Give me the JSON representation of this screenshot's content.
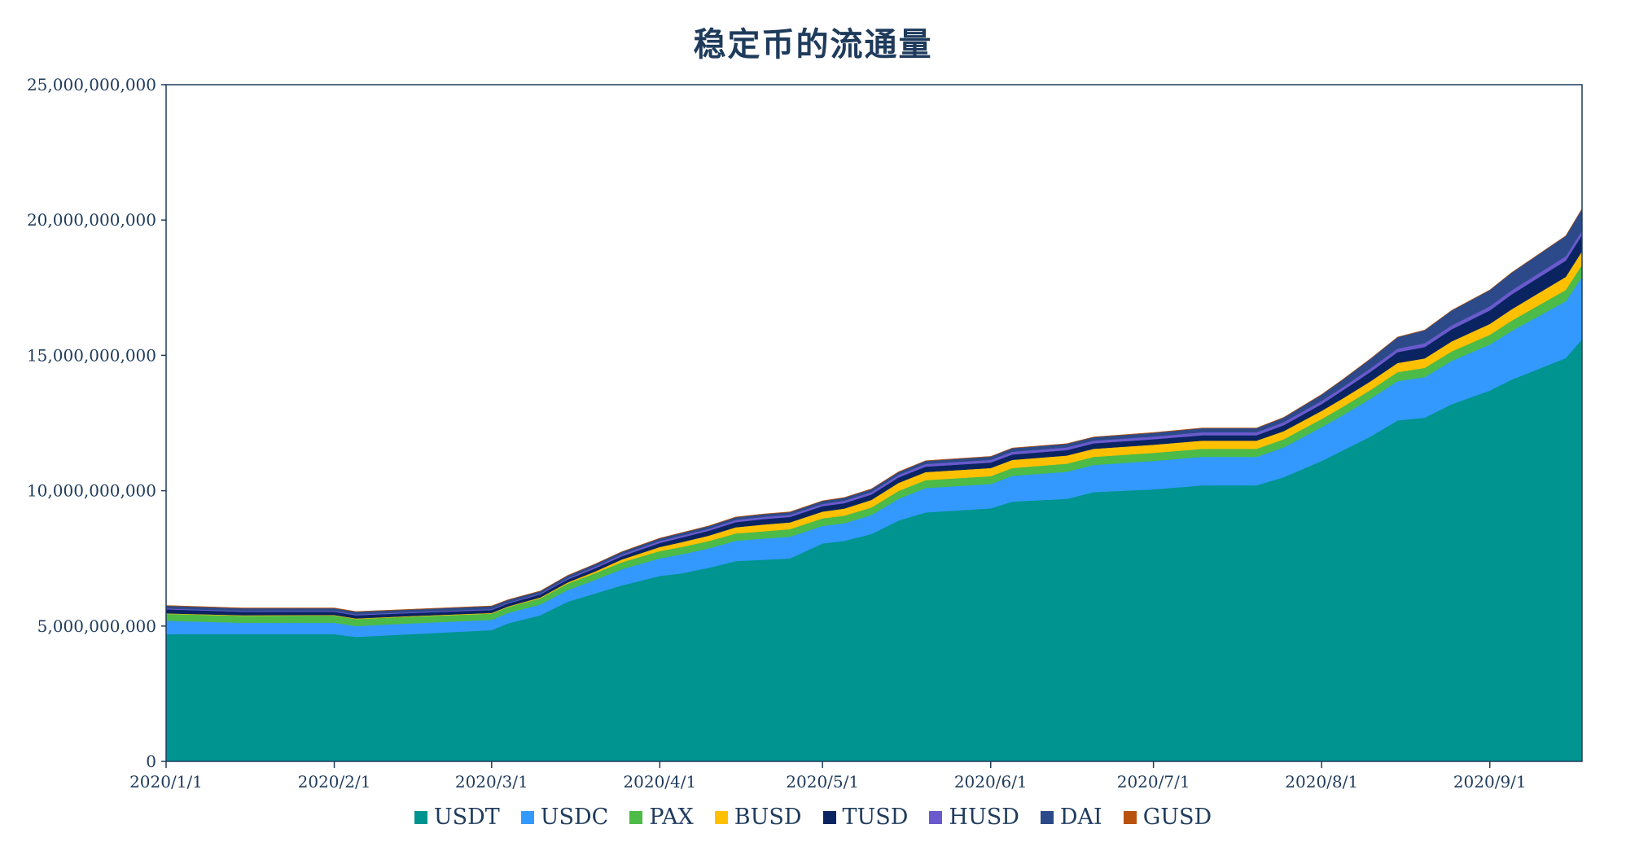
{
  "chart_data": {
    "type": "area",
    "stacked": true,
    "title": "稳定币的流通量",
    "xlabel": "",
    "ylabel": "",
    "ylim": [
      0,
      25000000000
    ],
    "yticks": [
      0,
      5000000000,
      10000000000,
      15000000000,
      20000000000,
      25000000000
    ],
    "ytick_labels": [
      "0",
      "5,000,000,000",
      "10,000,000,000",
      "15,000,000,000",
      "20,000,000,000",
      "25,000,000,000"
    ],
    "xlim": [
      "2020-01-01",
      "2020-09-18"
    ],
    "xtick_labels": [
      {
        "date": "2020-01-01",
        "label": "2020/1/1"
      },
      {
        "date": "2020-02-01",
        "label": "2020/2/1"
      },
      {
        "date": "2020-03-01",
        "label": "2020/3/1"
      },
      {
        "date": "2020-04-01",
        "label": "2020/4/1"
      },
      {
        "date": "2020-05-01",
        "label": "2020/5/1"
      },
      {
        "date": "2020-06-01",
        "label": "2020/6/1"
      },
      {
        "date": "2020-07-01",
        "label": "2020/7/1"
      },
      {
        "date": "2020-08-01",
        "label": "2020/8/1"
      },
      {
        "date": "2020-09-01",
        "label": "2020/9/1"
      }
    ],
    "grid": false,
    "legend_position": "bottom",
    "x": [
      "2020-01-01",
      "2020-01-15",
      "2020-02-01",
      "2020-02-05",
      "2020-02-15",
      "2020-03-01",
      "2020-03-04",
      "2020-03-10",
      "2020-03-15",
      "2020-03-20",
      "2020-03-25",
      "2020-04-01",
      "2020-04-05",
      "2020-04-10",
      "2020-04-15",
      "2020-04-20",
      "2020-04-25",
      "2020-05-01",
      "2020-05-05",
      "2020-05-10",
      "2020-05-15",
      "2020-05-20",
      "2020-06-01",
      "2020-06-05",
      "2020-06-15",
      "2020-06-20",
      "2020-07-01",
      "2020-07-10",
      "2020-07-20",
      "2020-07-25",
      "2020-08-01",
      "2020-08-05",
      "2020-08-10",
      "2020-08-15",
      "2020-08-20",
      "2020-08-25",
      "2020-09-01",
      "2020-09-05",
      "2020-09-10",
      "2020-09-15",
      "2020-09-18"
    ],
    "series": [
      {
        "name": "USDT",
        "color": "#009490",
        "values": [
          4700000000,
          4700000000,
          4700000000,
          4600000000,
          4700000000,
          4850000000,
          5100000000,
          5400000000,
          5900000000,
          6200000000,
          6500000000,
          6850000000,
          6950000000,
          7150000000,
          7400000000,
          7450000000,
          7500000000,
          8050000000,
          8150000000,
          8400000000,
          8900000000,
          9200000000,
          9350000000,
          9600000000,
          9700000000,
          9950000000,
          10050000000,
          10200000000,
          10200000000,
          10500000000,
          11100000000,
          11500000000,
          12000000000,
          12600000000,
          12700000000,
          13200000000,
          13700000000,
          14100000000,
          14500000000,
          14900000000,
          15600000000
        ]
      },
      {
        "name": "USDC",
        "color": "#3399ff",
        "values": [
          500000000,
          420000000,
          420000000,
          400000000,
          400000000,
          380000000,
          380000000,
          400000000,
          430000000,
          500000000,
          600000000,
          650000000,
          700000000,
          720000000,
          750000000,
          780000000,
          800000000,
          650000000,
          650000000,
          700000000,
          800000000,
          900000000,
          900000000,
          950000000,
          1000000000,
          1000000000,
          1050000000,
          1050000000,
          1050000000,
          1100000000,
          1250000000,
          1300000000,
          1400000000,
          1450000000,
          1500000000,
          1600000000,
          1700000000,
          1800000000,
          1950000000,
          2100000000,
          2300000000
        ]
      },
      {
        "name": "PAX",
        "color": "#4cbb47",
        "values": [
          250000000,
          260000000,
          270000000,
          260000000,
          250000000,
          230000000,
          220000000,
          230000000,
          240000000,
          250000000,
          260000000,
          270000000,
          270000000,
          270000000,
          270000000,
          270000000,
          280000000,
          280000000,
          280000000,
          280000000,
          290000000,
          290000000,
          290000000,
          290000000,
          300000000,
          300000000,
          300000000,
          300000000,
          300000000,
          300000000,
          300000000,
          310000000,
          320000000,
          330000000,
          340000000,
          350000000,
          360000000,
          380000000,
          400000000,
          420000000,
          450000000
        ]
      },
      {
        "name": "BUSD",
        "color": "#ffc000",
        "values": [
          20000000,
          20000000,
          20000000,
          20000000,
          20000000,
          25000000,
          25000000,
          30000000,
          40000000,
          60000000,
          100000000,
          150000000,
          180000000,
          200000000,
          230000000,
          250000000,
          250000000,
          250000000,
          260000000,
          280000000,
          300000000,
          300000000,
          300000000,
          300000000,
          300000000,
          300000000,
          300000000,
          300000000,
          300000000,
          300000000,
          300000000,
          310000000,
          320000000,
          340000000,
          350000000,
          370000000,
          400000000,
          420000000,
          450000000,
          480000000,
          500000000
        ]
      },
      {
        "name": "TUSD",
        "color": "#0a2462",
        "values": [
          150000000,
          130000000,
          120000000,
          120000000,
          110000000,
          110000000,
          110000000,
          110000000,
          110000000,
          120000000,
          120000000,
          150000000,
          170000000,
          180000000,
          190000000,
          200000000,
          200000000,
          200000000,
          200000000,
          200000000,
          200000000,
          200000000,
          200000000,
          200000000,
          200000000,
          200000000,
          200000000,
          200000000,
          200000000,
          220000000,
          250000000,
          300000000,
          350000000,
          400000000,
          420000000,
          450000000,
          500000000,
          550000000,
          580000000,
          600000000,
          600000000
        ]
      },
      {
        "name": "HUSD",
        "color": "#6a5acd",
        "values": [
          30000000,
          30000000,
          30000000,
          30000000,
          30000000,
          30000000,
          30000000,
          30000000,
          40000000,
          50000000,
          60000000,
          70000000,
          70000000,
          70000000,
          80000000,
          80000000,
          80000000,
          80000000,
          90000000,
          90000000,
          90000000,
          100000000,
          100000000,
          100000000,
          100000000,
          100000000,
          100000000,
          110000000,
          110000000,
          110000000,
          120000000,
          120000000,
          130000000,
          130000000,
          140000000,
          140000000,
          150000000,
          150000000,
          150000000,
          160000000,
          160000000
        ]
      },
      {
        "name": "DAI",
        "color": "#2c4a8a",
        "values": [
          100000000,
          100000000,
          100000000,
          100000000,
          100000000,
          110000000,
          100000000,
          90000000,
          100000000,
          100000000,
          100000000,
          100000000,
          100000000,
          100000000,
          100000000,
          100000000,
          100000000,
          110000000,
          110000000,
          110000000,
          110000000,
          110000000,
          120000000,
          130000000,
          130000000,
          130000000,
          140000000,
          150000000,
          150000000,
          170000000,
          230000000,
          280000000,
          350000000,
          420000000,
          480000000,
          550000000,
          600000000,
          650000000,
          700000000,
          750000000,
          800000000
        ]
      },
      {
        "name": "GUSD",
        "color": "#b8520c",
        "values": [
          10000000,
          10000000,
          10000000,
          10000000,
          10000000,
          10000000,
          10000000,
          10000000,
          10000000,
          10000000,
          10000000,
          10000000,
          10000000,
          10000000,
          10000000,
          10000000,
          10000000,
          10000000,
          10000000,
          10000000,
          10000000,
          10000000,
          10000000,
          10000000,
          10000000,
          10000000,
          10000000,
          10000000,
          10000000,
          10000000,
          10000000,
          10000000,
          10000000,
          10000000,
          10000000,
          10000000,
          10000000,
          10000000,
          10000000,
          10000000,
          10000000
        ]
      }
    ]
  }
}
